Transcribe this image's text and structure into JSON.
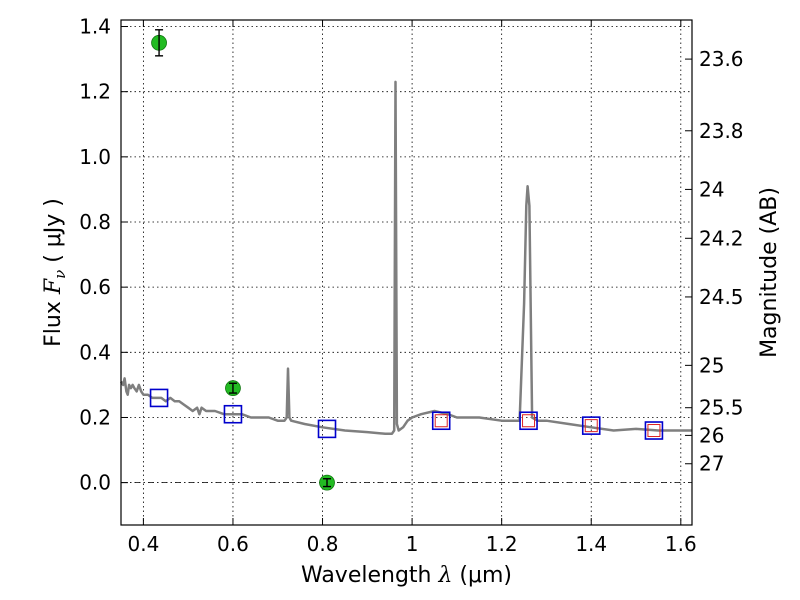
{
  "chart_data": {
    "type": "scatter",
    "xlabel_pre": "Wavelength ",
    "xlabel_math": "λ",
    "xlabel_post": " (μm)",
    "ylabel_pre": "Flux ",
    "ylabel_math": "F",
    "ylabel_sub": "ν",
    "ylabel_post": " ( μJy )",
    "y2label": "Magnitude (AB)",
    "xlim": [
      0.35,
      1.625
    ],
    "ylim": [
      -0.13,
      1.42
    ],
    "x_ticks": [
      0.4,
      0.6,
      0.8,
      1.0,
      1.2,
      1.4,
      1.6
    ],
    "x_tick_labels": [
      "0.4",
      "0.6",
      "0.8",
      "1",
      "1.2",
      "1.4",
      "1.6"
    ],
    "y_ticks": [
      0.0,
      0.2,
      0.4,
      0.6,
      0.8,
      1.0,
      1.2,
      1.4
    ],
    "y_tick_labels": [
      "0.0",
      "0.2",
      "0.4",
      "0.6",
      "0.8",
      "1.0",
      "1.2",
      "1.4"
    ],
    "y2_ticks": [
      {
        "label": "23.6",
        "flux": 1.3
      },
      {
        "label": "23.8",
        "flux": 1.08
      },
      {
        "label": "24",
        "flux": 0.9
      },
      {
        "label": "24.2",
        "flux": 0.75
      },
      {
        "label": "24.5",
        "flux": 0.57
      },
      {
        "label": "25",
        "flux": 0.36
      },
      {
        "label": "25.5",
        "flux": 0.23
      },
      {
        "label": "26",
        "flux": 0.145
      },
      {
        "label": "27",
        "flux": 0.058
      }
    ],
    "grid": true,
    "spectrum": {
      "color": "#7f7f7f",
      "points": [
        [
          0.35,
          0.31
        ],
        [
          0.355,
          0.3
        ],
        [
          0.358,
          0.32
        ],
        [
          0.362,
          0.28
        ],
        [
          0.365,
          0.27
        ],
        [
          0.368,
          0.3
        ],
        [
          0.372,
          0.29
        ],
        [
          0.376,
          0.3
        ],
        [
          0.38,
          0.29
        ],
        [
          0.385,
          0.28
        ],
        [
          0.39,
          0.3
        ],
        [
          0.395,
          0.28
        ],
        [
          0.4,
          0.27
        ],
        [
          0.41,
          0.27
        ],
        [
          0.42,
          0.26
        ],
        [
          0.43,
          0.26
        ],
        [
          0.44,
          0.26
        ],
        [
          0.45,
          0.25
        ],
        [
          0.46,
          0.26
        ],
        [
          0.47,
          0.25
        ],
        [
          0.48,
          0.25
        ],
        [
          0.49,
          0.24
        ],
        [
          0.5,
          0.23
        ],
        [
          0.51,
          0.22
        ],
        [
          0.52,
          0.23
        ],
        [
          0.525,
          0.21
        ],
        [
          0.53,
          0.23
        ],
        [
          0.54,
          0.22
        ],
        [
          0.56,
          0.22
        ],
        [
          0.58,
          0.21
        ],
        [
          0.6,
          0.21
        ],
        [
          0.62,
          0.21
        ],
        [
          0.64,
          0.2
        ],
        [
          0.66,
          0.2
        ],
        [
          0.68,
          0.2
        ],
        [
          0.7,
          0.19
        ],
        [
          0.715,
          0.19
        ],
        [
          0.72,
          0.2
        ],
        [
          0.723,
          0.35
        ],
        [
          0.726,
          0.2
        ],
        [
          0.73,
          0.19
        ],
        [
          0.76,
          0.18
        ],
        [
          0.8,
          0.17
        ],
        [
          0.85,
          0.16
        ],
        [
          0.9,
          0.155
        ],
        [
          0.94,
          0.15
        ],
        [
          0.955,
          0.15
        ],
        [
          0.96,
          0.16
        ],
        [
          0.963,
          1.23
        ],
        [
          0.966,
          0.18
        ],
        [
          0.97,
          0.16
        ],
        [
          0.98,
          0.17
        ],
        [
          0.99,
          0.19
        ],
        [
          1.0,
          0.2
        ],
        [
          1.02,
          0.21
        ],
        [
          1.05,
          0.22
        ],
        [
          1.08,
          0.21
        ],
        [
          1.1,
          0.2
        ],
        [
          1.15,
          0.2
        ],
        [
          1.2,
          0.19
        ],
        [
          1.23,
          0.19
        ],
        [
          1.24,
          0.19
        ],
        [
          1.25,
          0.55
        ],
        [
          1.255,
          0.85
        ],
        [
          1.258,
          0.91
        ],
        [
          1.262,
          0.85
        ],
        [
          1.268,
          0.2
        ],
        [
          1.28,
          0.19
        ],
        [
          1.3,
          0.19
        ],
        [
          1.35,
          0.18
        ],
        [
          1.4,
          0.17
        ],
        [
          1.45,
          0.16
        ],
        [
          1.5,
          0.165
        ],
        [
          1.55,
          0.16
        ],
        [
          1.6,
          0.16
        ],
        [
          1.625,
          0.16
        ]
      ]
    },
    "observed_points": {
      "color": "#22bb22",
      "points": [
        {
          "x": 0.435,
          "y": 1.35,
          "err": 0.04
        },
        {
          "x": 0.6,
          "y": 0.29,
          "err": 0.015
        },
        {
          "x": 0.81,
          "y": 0.0,
          "err": 0.012
        }
      ]
    },
    "model_squares_blue": {
      "color": "#0000cc",
      "points": [
        {
          "x": 0.435,
          "y": 0.26
        },
        {
          "x": 0.6,
          "y": 0.21
        },
        {
          "x": 0.81,
          "y": 0.165
        },
        {
          "x": 1.065,
          "y": 0.19
        },
        {
          "x": 1.26,
          "y": 0.19
        },
        {
          "x": 1.4,
          "y": 0.175
        },
        {
          "x": 1.54,
          "y": 0.16
        }
      ]
    },
    "model_squares_red": {
      "color": "#dd2222",
      "points": [
        {
          "x": 1.065,
          "y": 0.19
        },
        {
          "x": 1.26,
          "y": 0.19
        },
        {
          "x": 1.4,
          "y": 0.175
        },
        {
          "x": 1.54,
          "y": 0.16
        }
      ]
    }
  }
}
